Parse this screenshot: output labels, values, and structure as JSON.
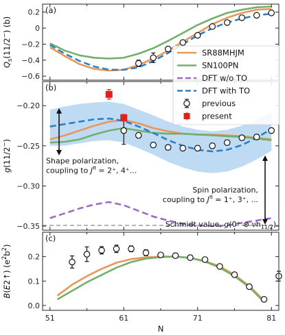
{
  "chart_data": [
    {
      "panel": "a",
      "panel_label": "(a)",
      "type": "line",
      "ylabel": "Q_s(11/2⁻) (b)",
      "xlim": [
        50,
        82
      ],
      "ylim": [
        -0.65,
        0.3
      ],
      "yticks": [
        0.2,
        0.0,
        -0.2,
        -0.4,
        -0.6
      ],
      "ytick_labels": [
        "0.2",
        "0",
        "−0.2",
        "−0.4",
        "−0.6"
      ],
      "series": [
        {
          "name": "SR88MHJM",
          "color": "#e8975a",
          "style": "solid",
          "x": [
            51,
            53,
            55,
            57,
            59,
            61,
            63,
            65,
            67,
            69,
            71,
            73,
            75,
            77,
            79,
            81
          ],
          "y": [
            -0.24,
            -0.35,
            -0.45,
            -0.51,
            -0.53,
            -0.52,
            -0.46,
            -0.38,
            -0.28,
            -0.17,
            -0.06,
            0.05,
            0.13,
            0.19,
            0.23,
            0.24
          ]
        },
        {
          "name": "SN100PN",
          "color": "#72b06a",
          "style": "solid",
          "x": [
            51,
            53,
            55,
            57,
            59,
            61,
            63,
            65,
            67,
            69,
            71,
            73,
            75,
            77,
            79,
            81
          ],
          "y": [
            -0.19,
            -0.28,
            -0.34,
            -0.37,
            -0.38,
            -0.37,
            -0.32,
            -0.25,
            -0.16,
            -0.06,
            0.04,
            0.12,
            0.19,
            0.23,
            0.26,
            0.27
          ]
        },
        {
          "name": "DFT with TO",
          "color": "#2b7fc4",
          "style": "dashed",
          "x": [
            51,
            53,
            55,
            57,
            59,
            61,
            63,
            65,
            67,
            69,
            71,
            73,
            75,
            77,
            79,
            81
          ],
          "y": [
            -0.21,
            -0.32,
            -0.41,
            -0.48,
            -0.52,
            -0.52,
            -0.49,
            -0.41,
            -0.31,
            -0.2,
            -0.09,
            0.0,
            0.07,
            0.12,
            0.16,
            0.18
          ]
        },
        {
          "name": "previous",
          "kind": "errorbar",
          "x": [
            63,
            65,
            67,
            69,
            71,
            73,
            75,
            77,
            79,
            81
          ],
          "y": [
            -0.44,
            -0.37,
            -0.26,
            -0.18,
            -0.09,
            0.02,
            0.07,
            0.13,
            0.16,
            0.19
          ],
          "err": [
            0.04,
            0.06,
            0.02,
            0.02,
            0.02,
            0.02,
            0.02,
            0.02,
            0.02,
            0.02
          ]
        }
      ]
    },
    {
      "panel": "b",
      "panel_label": "(b)",
      "type": "line",
      "ylabel": "g(11/2⁻)",
      "xlim": [
        50,
        82
      ],
      "ylim": [
        -0.355,
        -0.17
      ],
      "yticks": [
        -0.2,
        -0.25,
        -0.3,
        -0.35
      ],
      "ytick_labels": [
        "−0.20",
        "−0.25",
        "−0.30",
        "−0.35"
      ],
      "series": [
        {
          "name": "SR88MHJM",
          "color": "#e8975a",
          "style": "solid",
          "x": [
            51,
            53,
            55,
            57,
            59,
            61,
            63,
            65,
            67,
            69,
            71,
            73,
            75,
            77,
            79,
            81
          ],
          "y": [
            -0.242,
            -0.237,
            -0.231,
            -0.225,
            -0.22,
            -0.218,
            -0.222,
            -0.228,
            -0.232,
            -0.235,
            -0.236,
            -0.236,
            -0.237,
            -0.238,
            -0.24,
            -0.242
          ]
        },
        {
          "name": "SN100PN",
          "color": "#72b06a",
          "style": "solid",
          "x": [
            51,
            53,
            55,
            57,
            59,
            61,
            63,
            65,
            67,
            69,
            71,
            73,
            75,
            77,
            79,
            81
          ],
          "y": [
            -0.246,
            -0.245,
            -0.242,
            -0.236,
            -0.231,
            -0.228,
            -0.231,
            -0.234,
            -0.235,
            -0.235,
            -0.236,
            -0.237,
            -0.238,
            -0.239,
            -0.241,
            -0.243
          ]
        },
        {
          "name": "DFT w/o TO",
          "color": "#9b6cc4",
          "style": "dashed",
          "x": [
            51,
            53,
            55,
            57,
            59,
            61,
            63,
            65,
            67,
            69,
            71,
            73,
            75,
            77,
            79,
            81
          ],
          "y": [
            -0.34,
            -0.334,
            -0.328,
            -0.323,
            -0.32,
            -0.324,
            -0.331,
            -0.338,
            -0.343,
            -0.347,
            -0.349,
            -0.35,
            -0.349,
            -0.346,
            -0.343,
            -0.34
          ]
        },
        {
          "name": "DFT with TO",
          "color": "#2b7fc4",
          "style": "dashed",
          "x": [
            51,
            53,
            55,
            57,
            59,
            61,
            63,
            65,
            67,
            69,
            71,
            73,
            75,
            77,
            79,
            81
          ],
          "y": [
            -0.226,
            -0.223,
            -0.22,
            -0.217,
            -0.216,
            -0.219,
            -0.226,
            -0.234,
            -0.243,
            -0.25,
            -0.255,
            -0.257,
            -0.255,
            -0.249,
            -0.24,
            -0.229
          ],
          "band_low": [
            -0.25,
            -0.25,
            -0.247,
            -0.244,
            -0.243,
            -0.246,
            -0.253,
            -0.261,
            -0.27,
            -0.277,
            -0.282,
            -0.284,
            -0.282,
            -0.276,
            -0.267,
            -0.256
          ],
          "band_high": [
            -0.205,
            -0.201,
            -0.198,
            -0.196,
            -0.195,
            -0.198,
            -0.205,
            -0.212,
            -0.22,
            -0.226,
            -0.23,
            -0.232,
            -0.23,
            -0.225,
            -0.218,
            -0.208
          ]
        },
        {
          "name": "Schmidt",
          "color": "#888888",
          "style": "dashed",
          "x": [
            50,
            82
          ],
          "y": [
            -0.349,
            -0.349
          ]
        },
        {
          "name": "previous",
          "kind": "errorbar",
          "x": [
            61,
            63,
            65,
            67,
            69,
            71,
            73,
            75,
            77,
            79,
            81
          ],
          "y": [
            -0.231,
            -0.237,
            -0.249,
            -0.252,
            -0.253,
            -0.253,
            -0.25,
            -0.246,
            -0.24,
            -0.239,
            -0.231
          ],
          "err": [
            0.017,
            0.003,
            0.003,
            0.003,
            0.003,
            0.003,
            0.003,
            0.003,
            0.003,
            0.003,
            0.003
          ]
        },
        {
          "name": "present",
          "kind": "errorbar",
          "color": "#e0201e",
          "x": [
            59,
            61
          ],
          "y": [
            -0.186,
            -0.215
          ],
          "err": [
            0.006,
            0.004
          ]
        }
      ],
      "annotations": {
        "shape_line1": "Shape polarization,",
        "shape_line2_pre": "coupling to ",
        "shape_line2_sym": "J",
        "shape_line2_sup": "π",
        "shape_line2_post": " = 2⁺, 4⁺...",
        "spin_line1": "Spin polarization,",
        "spin_line2_pre": "coupling to ",
        "spin_line2_sym": "J",
        "spin_line2_sup": "π",
        "spin_line2_post": " = 1⁺, 3⁺, ...",
        "schmidt_pre": "Schmidt value, ",
        "schmidt_g": "g",
        "schmidt_mid": "(0⁺ ⊗ νh",
        "schmidt_sub": "11/2",
        "schmidt_post": ")"
      }
    },
    {
      "panel": "c",
      "panel_label": "(c)",
      "type": "line",
      "ylabel": "B(E2↑) (e²b²)",
      "xlim": [
        50,
        82
      ],
      "ylim": [
        -0.02,
        0.3
      ],
      "yticks": [
        0.0,
        0.1,
        0.2
      ],
      "ytick_labels": [
        "0.0",
        "0.1",
        "0.2"
      ],
      "xticks": [
        51,
        61,
        71,
        81
      ],
      "xtick_labels": [
        "51",
        "61",
        "71",
        "81"
      ],
      "xlabel": "N",
      "series": [
        {
          "name": "SR88MHJM",
          "color": "#e8975a",
          "style": "solid",
          "x": [
            52,
            54,
            56,
            58,
            60,
            62,
            64,
            66,
            68,
            70,
            72,
            74,
            76,
            78,
            80
          ],
          "y": [
            0.04,
            0.085,
            0.12,
            0.15,
            0.175,
            0.19,
            0.197,
            0.2,
            0.2,
            0.195,
            0.182,
            0.16,
            0.125,
            0.08,
            0.02
          ]
        },
        {
          "name": "SN100PN",
          "color": "#72b06a",
          "style": "solid",
          "x": [
            52,
            54,
            56,
            58,
            60,
            62,
            64,
            66,
            68,
            70,
            72,
            74,
            76,
            78,
            80
          ],
          "y": [
            0.025,
            0.06,
            0.095,
            0.125,
            0.155,
            0.178,
            0.192,
            0.198,
            0.2,
            0.195,
            0.18,
            0.155,
            0.12,
            0.075,
            0.015
          ]
        },
        {
          "name": "previous",
          "kind": "errorbar",
          "x": [
            54,
            56,
            58,
            60,
            62,
            64,
            66,
            68,
            70,
            72,
            74,
            76,
            78,
            80,
            82
          ],
          "y": [
            0.178,
            0.21,
            0.226,
            0.232,
            0.232,
            0.216,
            0.207,
            0.204,
            0.196,
            0.188,
            0.16,
            0.126,
            0.077,
            0.025,
            0.12
          ],
          "err": [
            0.025,
            0.03,
            0.015,
            0.015,
            0.012,
            0.012,
            0.008,
            0.008,
            0.008,
            0.008,
            0.008,
            0.008,
            0.008,
            0.008,
            0.02
          ]
        }
      ]
    }
  ],
  "legend": [
    {
      "name": "SR88MHJM",
      "kind": "line",
      "color": "#e8975a",
      "style": "solid"
    },
    {
      "name": "SN100PN",
      "kind": "line",
      "color": "#72b06a",
      "style": "solid"
    },
    {
      "name": "DFT w/o TO",
      "kind": "line",
      "color": "#9b6cc4",
      "style": "dashed"
    },
    {
      "name": "DFT with TO",
      "kind": "line",
      "color": "#2b7fc4",
      "style": "dashed"
    },
    {
      "name": "previous",
      "kind": "marker-open"
    },
    {
      "name": "present",
      "kind": "marker-red"
    }
  ]
}
